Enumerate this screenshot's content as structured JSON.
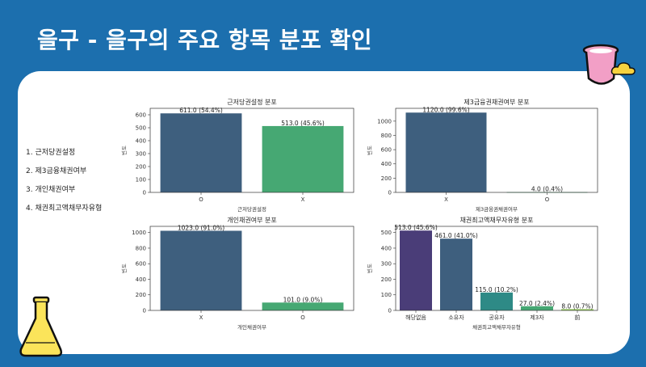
{
  "slide": {
    "title": "을구 - 을구의 주요 항목 분포 확인",
    "bullets": [
      "1. 근저당권설정",
      "2. 제3금융채권여부",
      "3. 개인채권여부",
      "4. 채권최고액채무자유형"
    ]
  },
  "colors": {
    "background": "#1c6fae",
    "card": "#ffffff"
  },
  "icons": {
    "top_right": "pink-beaker-icon",
    "bottom_left": "yellow-flask-icon",
    "cloud": "cloud-icon"
  },
  "chart_data": [
    {
      "type": "bar",
      "title": "근저당권설정 분포",
      "xlabel": "근저당권설정",
      "ylabel": "빈도",
      "categories": [
        "O",
        "X"
      ],
      "values": [
        611,
        513
      ],
      "labels": [
        "611.0 (54.4%)",
        "513.0 (45.6%)"
      ],
      "colors": [
        "#3e5f7e",
        "#46a873"
      ],
      "ylim": [
        0,
        650
      ],
      "yticks": [
        0,
        100,
        200,
        300,
        400,
        500,
        600
      ]
    },
    {
      "type": "bar",
      "title": "제3금융권채권여부 분포",
      "xlabel": "제3금융권채권여부",
      "ylabel": "빈도",
      "categories": [
        "X",
        "O"
      ],
      "values": [
        1120,
        4
      ],
      "labels": [
        "1120.0 (99.6%)",
        "4.0 (0.4%)"
      ],
      "colors": [
        "#3e5f7e",
        "#46a873"
      ],
      "ylim": [
        0,
        1180
      ],
      "yticks": [
        0,
        200,
        400,
        600,
        800,
        1000
      ]
    },
    {
      "type": "bar",
      "title": "개인채권여부 분포",
      "xlabel": "개인채권여부",
      "ylabel": "빈도",
      "categories": [
        "X",
        "O"
      ],
      "values": [
        1023,
        101
      ],
      "labels": [
        "1023.0 (91.0%)",
        "101.0 (9.0%)"
      ],
      "colors": [
        "#3e5f7e",
        "#46a873"
      ],
      "ylim": [
        0,
        1080
      ],
      "yticks": [
        0,
        200,
        400,
        600,
        800,
        1000
      ]
    },
    {
      "type": "bar",
      "title": "채권최고액채무자유형 분포",
      "xlabel": "채권최고액채무자유형",
      "ylabel": "빈도",
      "categories": [
        "해당없음",
        "소유자",
        "공유자",
        "제3자",
        "前"
      ],
      "values": [
        513,
        461,
        115,
        27,
        8
      ],
      "labels": [
        "513.0 (45.6%)",
        "461.0 (41.0%)",
        "115.0 (10.2%)",
        "27.0 (2.4%)",
        "8.0 (0.7%)"
      ],
      "colors": [
        "#4a3d78",
        "#3e5f7e",
        "#2e8a86",
        "#46a873",
        "#8fca50"
      ],
      "ylim": [
        0,
        540
      ],
      "yticks": [
        0,
        100,
        200,
        300,
        400,
        500
      ]
    }
  ]
}
